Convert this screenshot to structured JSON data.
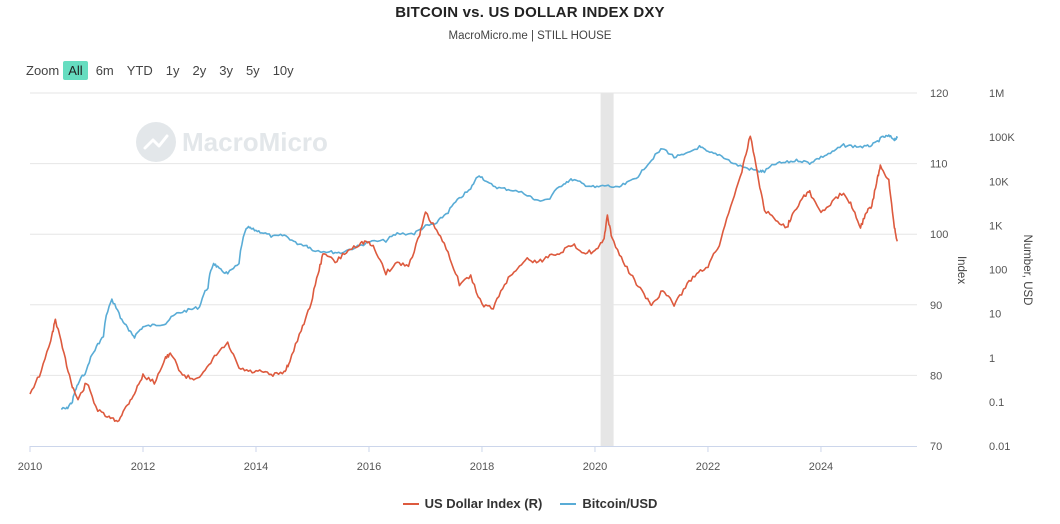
{
  "title": "BITCOIN vs. US DOLLAR INDEX DXY",
  "subtitle": "MacroMicro.me | STILL HOUSE",
  "watermark": "MacroMicro",
  "zoom": {
    "label": "Zoom",
    "buttons": [
      "All",
      "6m",
      "YTD",
      "1y",
      "2y",
      "3y",
      "5y",
      "10y"
    ],
    "active": "All"
  },
  "colors": {
    "dxy": "#dd5a3e",
    "btc": "#59acd6",
    "recession": "#e6e6e6",
    "grid": "#e6e6e6"
  },
  "chart_data": {
    "type": "line",
    "title": "BITCOIN vs. US DOLLAR INDEX DXY",
    "x_ticks": [
      "2010",
      "2012",
      "2014",
      "2016",
      "2018",
      "2020",
      "2022",
      "2024"
    ],
    "x_range": [
      2010.0,
      2025.7
    ],
    "shaded_band": [
      2020.1,
      2020.33
    ],
    "y_left": {
      "label": "Index",
      "range": [
        70,
        120
      ],
      "ticks": [
        "70",
        "80",
        "90",
        "100",
        "110",
        "120"
      ]
    },
    "y_right": {
      "label": "Number, USD",
      "scale": "log",
      "range": [
        0.01,
        1000000
      ],
      "ticks": [
        "0.01",
        "0.1",
        "1",
        "10",
        "100",
        "1K",
        "10K",
        "100K",
        "1M"
      ]
    },
    "legend_placement": "bottom",
    "grid": true,
    "series": [
      {
        "name": "US Dollar Index (R)",
        "axis": "left",
        "x": [
          2010.0,
          2010.2,
          2010.4,
          2010.45,
          2010.6,
          2010.75,
          2010.85,
          2011.0,
          2011.2,
          2011.4,
          2011.55,
          2011.7,
          2011.85,
          2012.0,
          2012.2,
          2012.4,
          2012.5,
          2012.7,
          2012.9,
          2013.1,
          2013.3,
          2013.5,
          2013.7,
          2013.9,
          2014.1,
          2014.3,
          2014.5,
          2014.6,
          2014.8,
          2014.95,
          2015.1,
          2015.2,
          2015.4,
          2015.6,
          2015.8,
          2015.95,
          2016.1,
          2016.3,
          2016.5,
          2016.7,
          2016.9,
          2017.0,
          2017.2,
          2017.4,
          2017.6,
          2017.8,
          2018.0,
          2018.2,
          2018.4,
          2018.6,
          2018.8,
          2019.0,
          2019.2,
          2019.4,
          2019.6,
          2019.8,
          2020.0,
          2020.15,
          2020.22,
          2020.3,
          2020.5,
          2020.7,
          2020.9,
          2021.0,
          2021.2,
          2021.4,
          2021.6,
          2021.8,
          2022.0,
          2022.2,
          2022.4,
          2022.6,
          2022.75,
          2022.9,
          2023.0,
          2023.2,
          2023.4,
          2023.5,
          2023.7,
          2023.8,
          2024.0,
          2024.2,
          2024.4,
          2024.55,
          2024.7,
          2024.8,
          2024.9,
          2025.0,
          2025.05,
          2025.2,
          2025.3,
          2025.35
        ],
        "values": [
          77.5,
          80.5,
          86.0,
          88.0,
          83.0,
          78.5,
          76.5,
          79.0,
          75.0,
          74.0,
          73.5,
          75.5,
          77.5,
          80.0,
          79.0,
          82.5,
          83.0,
          80.0,
          79.5,
          80.5,
          83.0,
          84.5,
          81.0,
          80.5,
          80.5,
          80.0,
          80.5,
          82.0,
          86.5,
          89.5,
          94.5,
          97.5,
          96.0,
          97.5,
          98.5,
          99.0,
          98.0,
          94.5,
          96.0,
          95.5,
          100.0,
          103.0,
          100.5,
          97.5,
          93.0,
          94.0,
          90.0,
          89.5,
          93.0,
          95.0,
          96.5,
          96.0,
          97.0,
          97.5,
          98.5,
          97.5,
          97.5,
          99.0,
          102.5,
          99.5,
          96.0,
          93.5,
          91.0,
          90.0,
          92.0,
          90.0,
          92.5,
          94.5,
          95.5,
          98.5,
          104.0,
          109.0,
          114.0,
          107.5,
          103.5,
          102.0,
          101.0,
          103.0,
          105.5,
          106.0,
          103.0,
          104.5,
          106.0,
          104.0,
          101.0,
          103.0,
          104.0,
          108.0,
          109.5,
          107.5,
          101.0,
          99.0
        ]
      },
      {
        "name": "Bitcoin/USD",
        "axis": "right",
        "x": [
          2010.55,
          2010.65,
          2010.75,
          2010.85,
          2011.0,
          2011.15,
          2011.3,
          2011.45,
          2011.6,
          2011.75,
          2011.85,
          2012.0,
          2012.2,
          2012.4,
          2012.6,
          2012.8,
          2013.0,
          2013.15,
          2013.25,
          2013.35,
          2013.5,
          2013.7,
          2013.85,
          2013.95,
          2014.1,
          2014.3,
          2014.5,
          2014.7,
          2014.9,
          2015.0,
          2015.3,
          2015.5,
          2015.8,
          2016.0,
          2016.3,
          2016.5,
          2016.8,
          2017.0,
          2017.2,
          2017.4,
          2017.6,
          2017.8,
          2017.95,
          2018.1,
          2018.3,
          2018.5,
          2018.8,
          2018.95,
          2019.2,
          2019.45,
          2019.6,
          2019.8,
          2020.0,
          2020.2,
          2020.4,
          2020.6,
          2020.8,
          2021.0,
          2021.2,
          2021.4,
          2021.6,
          2021.85,
          2022.0,
          2022.2,
          2022.45,
          2022.7,
          2022.9,
          2023.0,
          2023.2,
          2023.4,
          2023.6,
          2023.8,
          2024.0,
          2024.2,
          2024.4,
          2024.6,
          2024.8,
          2024.95,
          2025.1,
          2025.2,
          2025.3,
          2025.35
        ],
        "values": [
          0.07,
          0.07,
          0.1,
          0.25,
          0.5,
          1.5,
          3,
          20,
          8,
          4,
          3,
          5,
          5.5,
          6,
          10,
          12,
          14,
          40,
          140,
          100,
          80,
          130,
          900,
          800,
          700,
          550,
          600,
          400,
          350,
          280,
          250,
          240,
          330,
          420,
          450,
          650,
          650,
          950,
          1100,
          2000,
          4000,
          6500,
          14000,
          9000,
          7000,
          6500,
          5000,
          3600,
          4000,
          9000,
          11000,
          8500,
          7200,
          8000,
          7000,
          9500,
          14000,
          30000,
          55000,
          35000,
          40000,
          60000,
          45000,
          40000,
          25000,
          19500,
          17000,
          16500,
          25000,
          27000,
          30000,
          26000,
          35000,
          45000,
          65000,
          62000,
          60000,
          70000,
          100000,
          105000,
          90000,
          95000
        ]
      }
    ]
  },
  "legend": [
    {
      "name": "US Dollar Index (R)",
      "color": "#dd5a3e"
    },
    {
      "name": "Bitcoin/USD",
      "color": "#59acd6"
    }
  ]
}
